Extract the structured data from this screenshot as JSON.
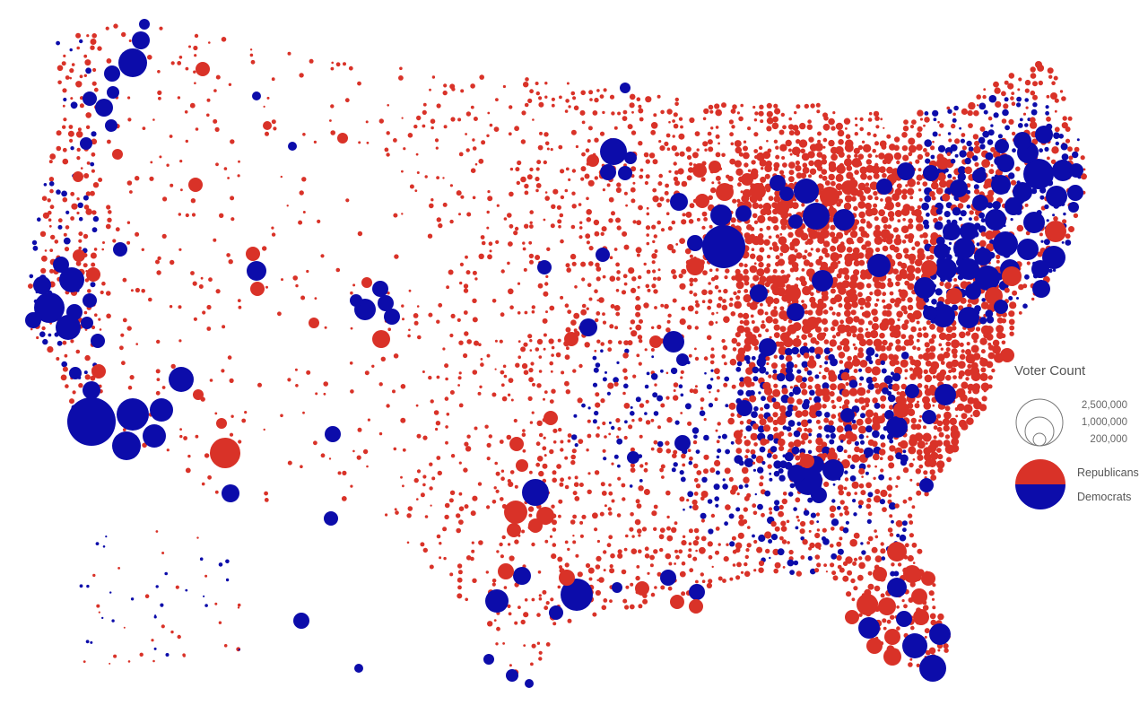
{
  "colors": {
    "republicans": "#d93228",
    "democrats": "#0c0caa",
    "background": "#ffffff"
  },
  "legend": {
    "title": "Voter Count",
    "sizes": [
      "2,500,000",
      "1,000,000",
      "200,000"
    ],
    "parties": [
      "Republicans",
      "Democrats"
    ]
  }
}
